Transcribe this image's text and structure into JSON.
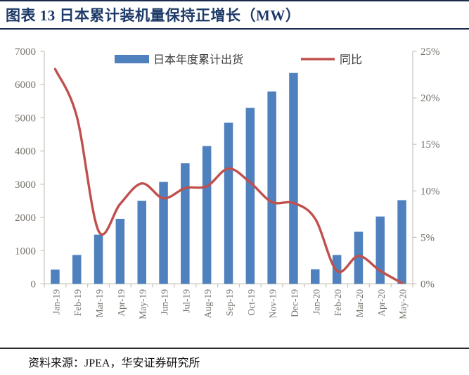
{
  "header": {
    "title": "图表  13  日本累计装机量保持正增长（MW）"
  },
  "footer": {
    "source": "资料来源：JPEA，华安证券研究所"
  },
  "colors": {
    "title": "#1E3A68",
    "rule": "#1B2B4B",
    "footer_rule": "#2B2B2B",
    "bar": "#4E81BD",
    "line": "#C0504D",
    "axis_line": "#C9C3BA",
    "axis_text": "#76716A",
    "legend_text": "#3C3C3C",
    "source_text": "#111111"
  },
  "chart_data": {
    "type": "bar+line",
    "title": "日本累计装机量保持正增长（MW）",
    "categories": [
      "Jan-19",
      "Feb-19",
      "Mar-19",
      "Apr-19",
      "May-19",
      "Jun-19",
      "Jul-19",
      "Aug-19",
      "Sep-19",
      "Oct-19",
      "Nov-19",
      "Dec-19",
      "Jan-20",
      "Feb-20",
      "Mar-20",
      "Apr-20",
      "May-20"
    ],
    "series": [
      {
        "name": "日本年度累计出货",
        "type": "bar",
        "axis": "left",
        "unit": "MW",
        "values": [
          430,
          870,
          1480,
          1960,
          2500,
          3070,
          3630,
          4150,
          4850,
          5300,
          5790,
          6350,
          440,
          870,
          1570,
          2030,
          2520
        ]
      },
      {
        "name": "同比",
        "type": "line",
        "axis": "right",
        "unit": "%",
        "values": [
          23.1,
          18.0,
          5.7,
          8.6,
          10.8,
          9.2,
          10.3,
          10.5,
          12.4,
          10.9,
          8.8,
          8.7,
          7.0,
          1.4,
          3.0,
          1.4,
          0.1
        ]
      }
    ],
    "left_axis": {
      "min": 0,
      "max": 7000,
      "step": 1000
    },
    "right_axis": {
      "min": 0,
      "max": 25,
      "step": 5,
      "suffix": "%"
    },
    "grid": "off",
    "legend_position": "top"
  }
}
